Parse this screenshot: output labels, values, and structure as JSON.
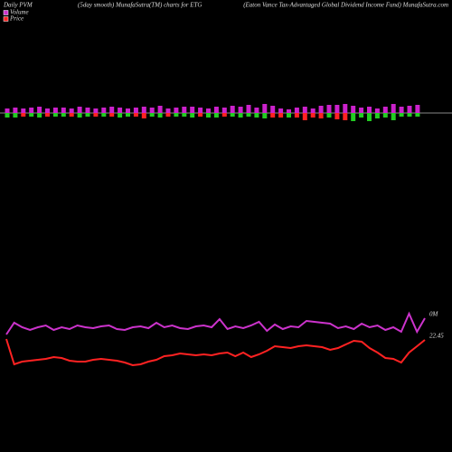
{
  "chart_data": {
    "type": "pvm",
    "title": "Daily PVM",
    "subtitle": "(5day smooth) MunafaSutra(TM) charts for ETG",
    "heading": "(Eaton Vance Tax-Advantaged Global Dividend Income Fund) MunafaSutra.com",
    "bars": {
      "up": [
        5,
        6,
        5,
        6,
        7,
        5,
        6,
        6,
        5,
        7,
        6,
        5,
        6,
        7,
        6,
        5,
        6,
        7,
        6,
        8,
        5,
        6,
        7,
        7,
        6,
        5,
        7,
        6,
        8,
        7,
        9,
        6,
        10,
        8,
        5,
        4,
        6,
        7,
        5,
        8,
        9,
        9,
        10,
        8,
        6,
        7,
        5,
        7,
        10,
        7,
        8,
        9
      ],
      "down": [
        -5,
        -5,
        -4,
        -4,
        -5,
        -4,
        -4,
        -4,
        -4,
        -5,
        -4,
        -4,
        -4,
        -4,
        -5,
        -4,
        -4,
        -6,
        -4,
        -5,
        -4,
        -4,
        -4,
        -5,
        -4,
        -5,
        -5,
        -4,
        -4,
        -5,
        -4,
        -5,
        -6,
        -5,
        -5,
        -5,
        -5,
        -8,
        -5,
        -6,
        -5,
        -7,
        -8,
        -9,
        -5,
        -9,
        -6,
        -5,
        -8,
        -4,
        -4,
        -4
      ],
      "up_color": "#cc22cc",
      "down_colors": [
        "#22cc22",
        "#22cc22",
        "#ff2222",
        "#22cc22",
        "#22cc22",
        "#ff2222",
        "#22cc22",
        "#22cc22",
        "#ff2222",
        "#22cc22",
        "#22cc22",
        "#ff2222",
        "#22cc22",
        "#ff2222",
        "#22cc22",
        "#22cc22",
        "#ff2222",
        "#ff2222",
        "#22cc22",
        "#22cc22",
        "#ff2222",
        "#22cc22",
        "#22cc22",
        "#22cc22",
        "#ff2222",
        "#22cc22",
        "#22cc22",
        "#ff2222",
        "#22cc22",
        "#22cc22",
        "#22cc22",
        "#22cc22",
        "#22cc22",
        "#ff2222",
        "#ff2222",
        "#22cc22",
        "#ff2222",
        "#ff2222",
        "#ff2222",
        "#ff2222",
        "#22cc22",
        "#ff2222",
        "#ff2222",
        "#22cc22",
        "#22cc22",
        "#22cc22",
        "#22cc22",
        "#22cc22",
        "#22cc22",
        "#22cc22",
        "#22cc22",
        "#22cc22"
      ]
    },
    "series": [
      {
        "name": "Volume",
        "color": "#cc33cc",
        "values": [
          50,
          63,
          58,
          55,
          58,
          60,
          55,
          58,
          56,
          60,
          58,
          57,
          59,
          60,
          56,
          55,
          58,
          59,
          57,
          63,
          58,
          60,
          57,
          56,
          59,
          60,
          58,
          67,
          56,
          59,
          57,
          60,
          64,
          54,
          61,
          56,
          59,
          58,
          65,
          64,
          63,
          62,
          57,
          59,
          56,
          62,
          58,
          60,
          55,
          58,
          53,
          73,
          53,
          68
        ],
        "end_label": "0M"
      },
      {
        "name": "Price",
        "color": "#ff2222",
        "values": [
          45,
          17,
          20,
          21,
          22,
          23,
          25,
          24,
          21,
          20,
          20,
          22,
          23,
          22,
          21,
          19,
          16,
          17,
          20,
          22,
          26,
          27,
          29,
          28,
          27,
          28,
          27,
          29,
          30,
          26,
          30,
          25,
          28,
          32,
          37,
          36,
          35,
          37,
          38,
          37,
          36,
          33,
          35,
          39,
          43,
          42,
          35,
          30,
          24,
          23,
          19,
          30,
          37,
          44
        ],
        "end_label": "22.45"
      }
    ],
    "ylim": [
      0,
      80
    ]
  }
}
